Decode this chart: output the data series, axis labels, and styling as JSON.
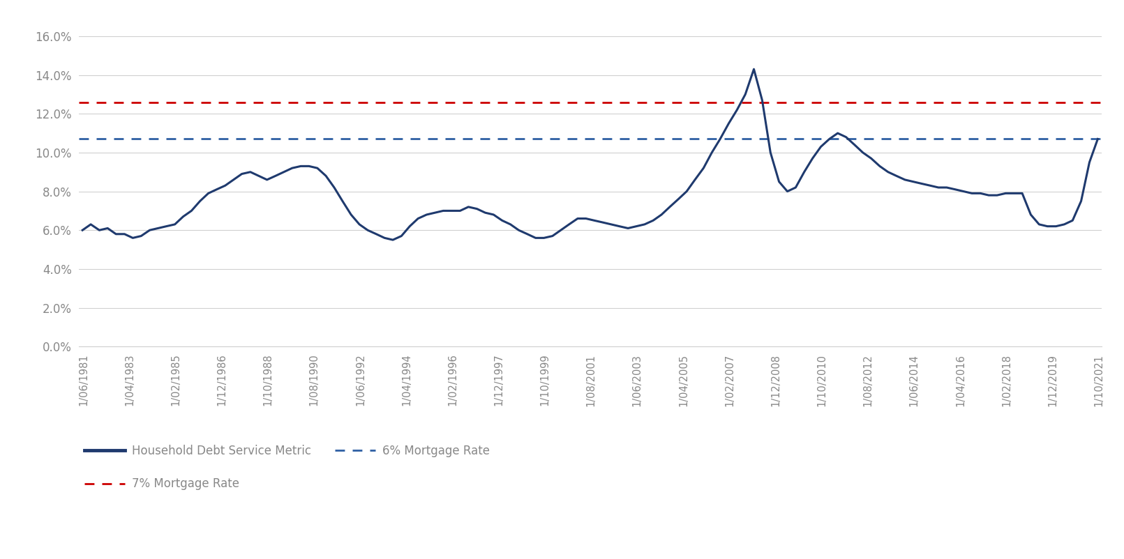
{
  "blue_line_value": 0.107,
  "red_line_value": 0.126,
  "blue_line_label": "6% Mortgage Rate",
  "red_line_label": "7% Mortgage Rate",
  "main_line_label": "Household Debt Service Metric",
  "main_line_color": "#1f3a6e",
  "blue_dashed_color": "#2e5fa3",
  "red_dashed_color": "#cc0000",
  "ylim": [
    0.0,
    0.17
  ],
  "yticks": [
    0.0,
    0.02,
    0.04,
    0.06,
    0.08,
    0.1,
    0.12,
    0.14,
    0.16
  ],
  "xtick_labels": [
    "1/06/1981",
    "1/04/1983",
    "1/02/1985",
    "1/12/1986",
    "1/10/1988",
    "1/08/1990",
    "1/06/1992",
    "1/04/1994",
    "1/02/1996",
    "1/12/1997",
    "1/10/1999",
    "1/08/2001",
    "1/06/2003",
    "1/04/2005",
    "1/02/2007",
    "1/12/2008",
    "1/10/2010",
    "1/08/2012",
    "1/06/2014",
    "1/04/2016",
    "1/02/2018",
    "1/12/2019",
    "1/10/2021"
  ],
  "data_x": [
    1981.46,
    1981.79,
    1982.13,
    1982.46,
    1982.79,
    1983.13,
    1983.46,
    1983.79,
    1984.13,
    1984.46,
    1984.79,
    1985.13,
    1985.46,
    1985.79,
    1986.13,
    1986.46,
    1986.79,
    1987.13,
    1987.46,
    1987.79,
    1988.13,
    1988.46,
    1988.79,
    1989.13,
    1989.46,
    1989.79,
    1990.13,
    1990.46,
    1990.79,
    1991.13,
    1991.46,
    1991.79,
    1992.13,
    1992.46,
    1992.79,
    1993.13,
    1993.46,
    1993.79,
    1994.13,
    1994.46,
    1994.79,
    1995.13,
    1995.46,
    1995.79,
    1996.13,
    1996.46,
    1996.79,
    1997.13,
    1997.46,
    1997.79,
    1998.13,
    1998.46,
    1998.79,
    1999.13,
    1999.46,
    1999.79,
    2000.13,
    2000.46,
    2000.79,
    2001.13,
    2001.46,
    2001.79,
    2002.13,
    2002.46,
    2002.79,
    2003.13,
    2003.46,
    2003.79,
    2004.13,
    2004.46,
    2004.79,
    2005.13,
    2005.46,
    2005.79,
    2006.13,
    2006.46,
    2006.79,
    2007.13,
    2007.46,
    2007.79,
    2008.13,
    2008.46,
    2008.79,
    2009.13,
    2009.46,
    2009.79,
    2010.13,
    2010.46,
    2010.79,
    2011.13,
    2011.46,
    2011.79,
    2012.13,
    2012.46,
    2012.79,
    2013.13,
    2013.46,
    2013.79,
    2014.13,
    2014.46,
    2014.79,
    2015.13,
    2015.46,
    2015.79,
    2016.13,
    2016.46,
    2016.79,
    2017.13,
    2017.46,
    2017.79,
    2018.13,
    2018.46,
    2018.79,
    2019.13,
    2019.46,
    2019.79,
    2020.13,
    2020.46,
    2020.79,
    2021.13,
    2021.46,
    2021.79
  ],
  "data_y": [
    0.06,
    0.063,
    0.06,
    0.061,
    0.058,
    0.058,
    0.056,
    0.057,
    0.06,
    0.061,
    0.062,
    0.063,
    0.067,
    0.07,
    0.075,
    0.079,
    0.081,
    0.083,
    0.086,
    0.089,
    0.09,
    0.088,
    0.086,
    0.088,
    0.09,
    0.092,
    0.093,
    0.093,
    0.092,
    0.088,
    0.082,
    0.075,
    0.068,
    0.063,
    0.06,
    0.058,
    0.056,
    0.055,
    0.057,
    0.062,
    0.066,
    0.068,
    0.069,
    0.07,
    0.07,
    0.07,
    0.072,
    0.071,
    0.069,
    0.068,
    0.065,
    0.063,
    0.06,
    0.058,
    0.056,
    0.056,
    0.057,
    0.06,
    0.063,
    0.066,
    0.066,
    0.065,
    0.064,
    0.063,
    0.062,
    0.061,
    0.062,
    0.063,
    0.065,
    0.068,
    0.072,
    0.076,
    0.08,
    0.086,
    0.092,
    0.1,
    0.107,
    0.115,
    0.122,
    0.13,
    0.143,
    0.127,
    0.1,
    0.085,
    0.08,
    0.082,
    0.09,
    0.097,
    0.103,
    0.107,
    0.11,
    0.108,
    0.104,
    0.1,
    0.097,
    0.093,
    0.09,
    0.088,
    0.086,
    0.085,
    0.084,
    0.083,
    0.082,
    0.082,
    0.081,
    0.08,
    0.079,
    0.079,
    0.078,
    0.078,
    0.079,
    0.079,
    0.079,
    0.068,
    0.063,
    0.062,
    0.062,
    0.063,
    0.065,
    0.075,
    0.095,
    0.107
  ],
  "background_color": "#ffffff",
  "grid_color": "#d0d0d0",
  "tick_label_color": "#888888",
  "legend_text_color": "#888888"
}
